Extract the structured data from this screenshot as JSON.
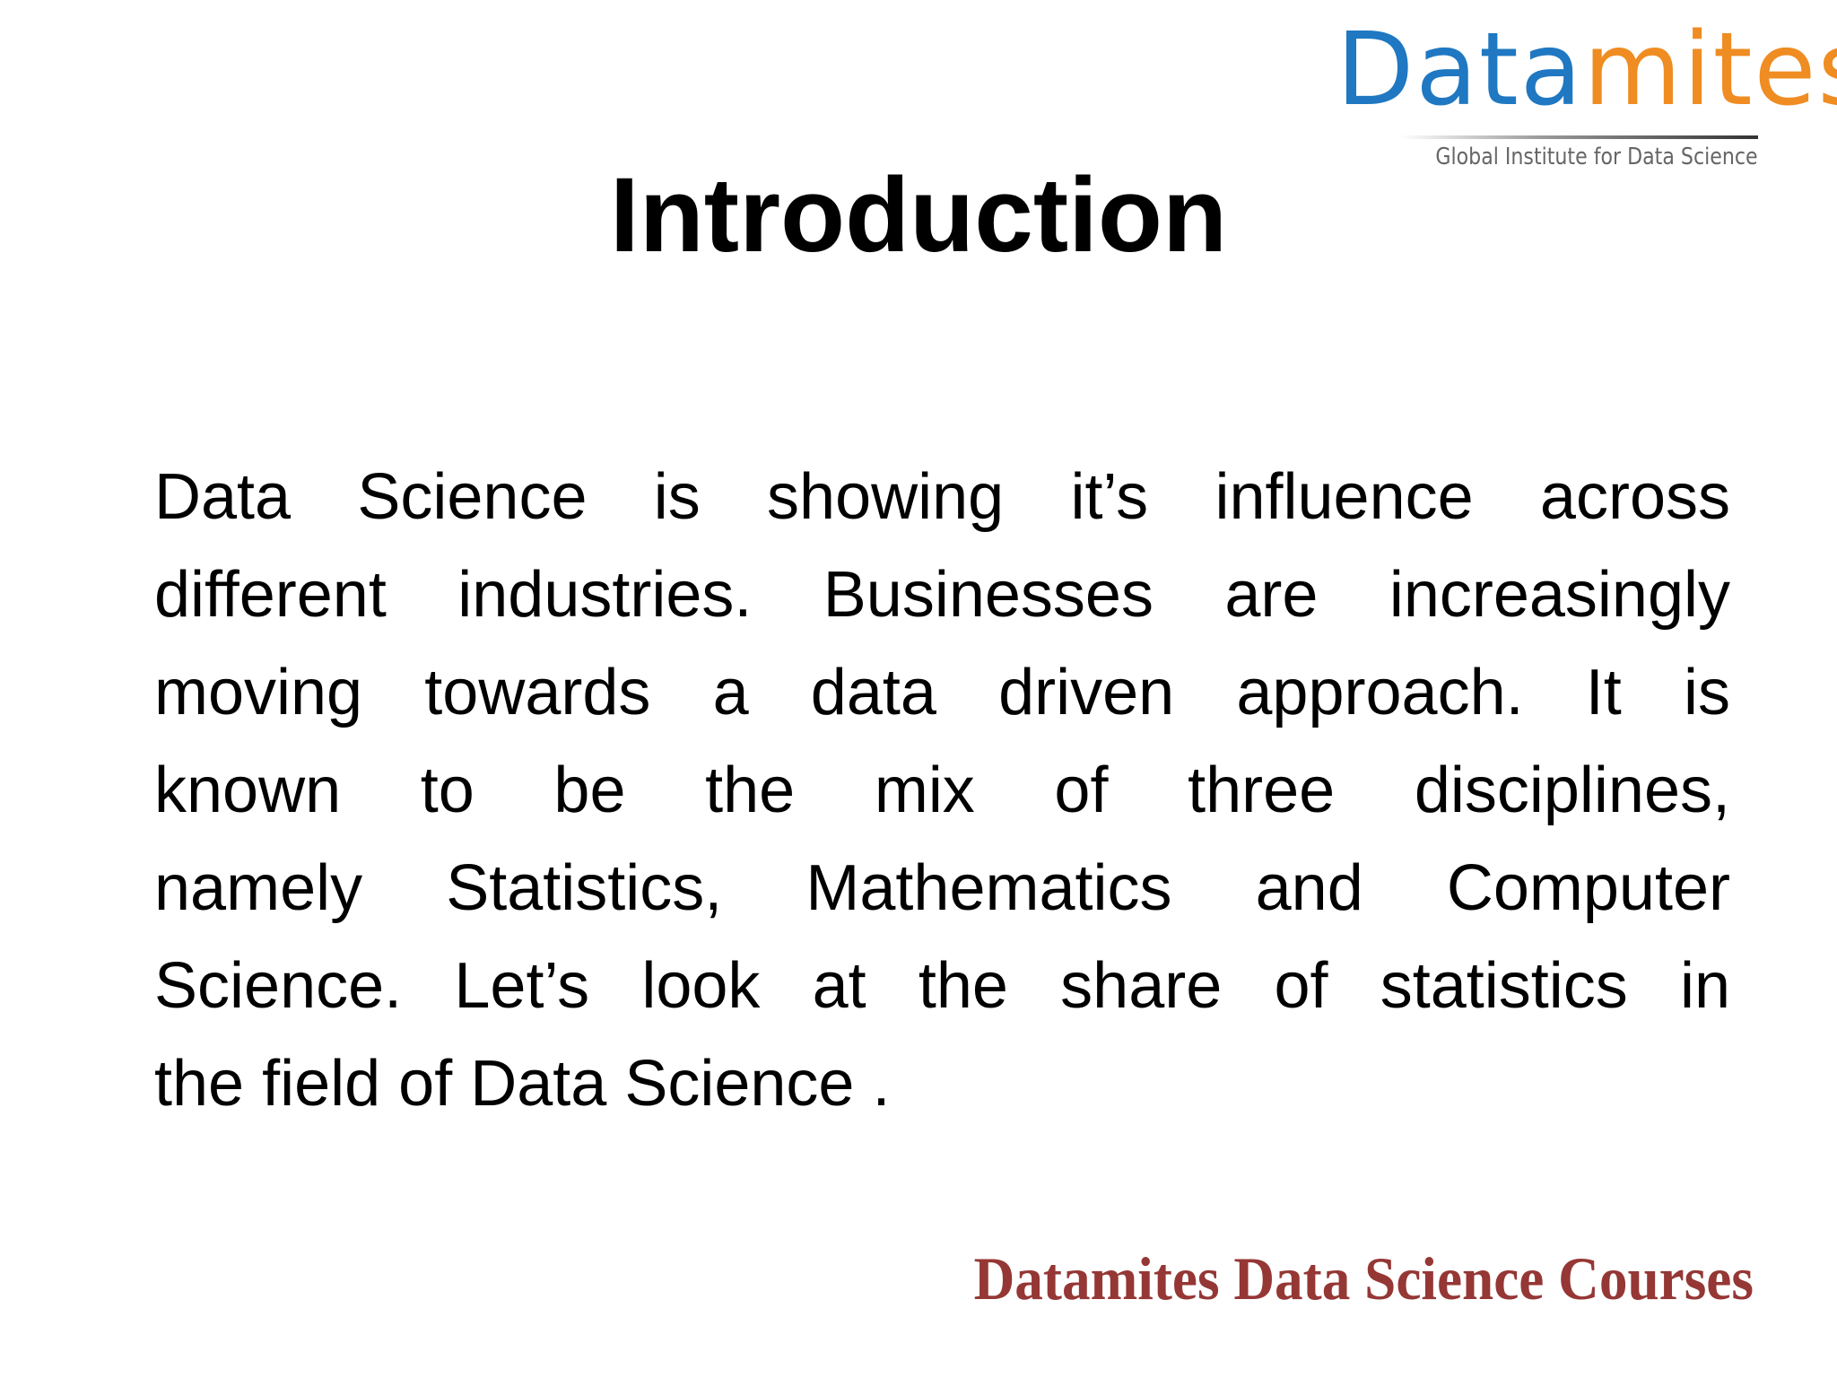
{
  "logo": {
    "word_part1": "Data",
    "word_part2": "mites",
    "tagline": "Global Institute for Data Science",
    "colors": {
      "blue": "#1f78c1",
      "orange": "#ef8c22"
    }
  },
  "slide": {
    "title": "Introduction",
    "body_lines": [
      "Data Science is showing it’s influence across",
      "different industries. Businesses are increasingly",
      "moving towards a data driven approach. It is",
      "known to be the mix of three disciplines,",
      "namely Statistics, Mathematics and Computer",
      "Science. Let’s look at the share of statistics in",
      "the field of Data Science ."
    ],
    "footer": "Datamites Data Science Courses",
    "footer_color": "#953735"
  }
}
